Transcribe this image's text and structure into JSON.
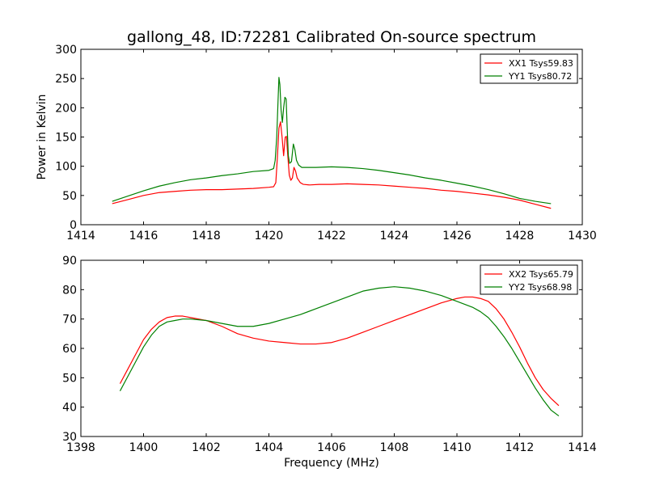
{
  "figure": {
    "title": "gallong_48, ID:72281 Calibrated On-source spectrum",
    "shared_xlabel": "Frequency (MHz)"
  },
  "colors": {
    "red": "#ff0000",
    "green": "#008000",
    "axis": "#000000"
  },
  "chart_data": [
    {
      "type": "line",
      "title": "gallong_48, ID:72281 Calibrated On-source spectrum",
      "xlabel": "",
      "ylabel": "Power in Kelvin",
      "xlim": [
        1414,
        1430
      ],
      "ylim": [
        0,
        300
      ],
      "xticks": [
        1414,
        1416,
        1418,
        1420,
        1422,
        1424,
        1426,
        1428,
        1430
      ],
      "yticks": [
        0,
        50,
        100,
        150,
        200,
        250,
        300
      ],
      "grid": false,
      "legend_position": "top-right",
      "series": [
        {
          "name": "XX1 Tsys59.83",
          "color": "#ff0000",
          "x": [
            1415.0,
            1415.5,
            1416.0,
            1416.5,
            1417.0,
            1417.5,
            1418.0,
            1418.5,
            1419.0,
            1419.5,
            1420.0,
            1420.15,
            1420.22,
            1420.27,
            1420.32,
            1420.37,
            1420.42,
            1420.47,
            1420.52,
            1420.56,
            1420.6,
            1420.65,
            1420.7,
            1420.75,
            1420.8,
            1420.85,
            1420.9,
            1421.0,
            1421.1,
            1421.3,
            1421.6,
            1422.0,
            1422.5,
            1423.0,
            1423.5,
            1424.0,
            1424.5,
            1425.0,
            1425.5,
            1426.0,
            1426.5,
            1427.0,
            1427.5,
            1428.0,
            1428.5,
            1429.0
          ],
          "y": [
            36,
            43,
            50,
            55,
            57,
            59,
            60,
            60,
            61,
            62,
            64,
            65,
            72,
            115,
            165,
            176,
            150,
            118,
            150,
            151,
            120,
            85,
            76,
            80,
            98,
            92,
            80,
            72,
            69,
            68,
            69,
            69,
            70,
            69,
            68,
            66,
            64,
            62,
            59,
            57,
            54,
            51,
            47,
            42,
            35,
            28
          ]
        },
        {
          "name": "YY1 Tsys80.72",
          "color": "#008000",
          "x": [
            1415.0,
            1415.5,
            1416.0,
            1416.5,
            1417.0,
            1417.5,
            1418.0,
            1418.5,
            1419.0,
            1419.5,
            1420.0,
            1420.15,
            1420.2,
            1420.25,
            1420.29,
            1420.32,
            1420.35,
            1420.39,
            1420.43,
            1420.47,
            1420.51,
            1420.55,
            1420.58,
            1420.62,
            1420.66,
            1420.72,
            1420.78,
            1420.83,
            1420.88,
            1420.95,
            1421.05,
            1421.2,
            1421.5,
            1422.0,
            1422.5,
            1423.0,
            1423.5,
            1424.0,
            1424.5,
            1425.0,
            1425.5,
            1426.0,
            1426.5,
            1427.0,
            1427.5,
            1428.0,
            1428.5,
            1429.0
          ],
          "y": [
            40,
            49,
            58,
            66,
            72,
            77,
            80,
            84,
            87,
            91,
            93,
            96,
            110,
            150,
            210,
            252,
            240,
            195,
            175,
            200,
            218,
            215,
            170,
            118,
            105,
            108,
            138,
            128,
            110,
            102,
            98,
            98,
            98,
            99,
            98,
            96,
            93,
            89,
            85,
            80,
            76,
            71,
            66,
            60,
            53,
            45,
            40,
            36
          ]
        }
      ]
    },
    {
      "type": "line",
      "title": "",
      "xlabel": "Frequency (MHz)",
      "ylabel": "",
      "xlim": [
        1398,
        1414
      ],
      "ylim": [
        30,
        90
      ],
      "xticks": [
        1398,
        1400,
        1402,
        1404,
        1406,
        1408,
        1410,
        1412,
        1414
      ],
      "yticks": [
        30,
        40,
        50,
        60,
        70,
        80,
        90
      ],
      "grid": false,
      "legend_position": "top-right",
      "series": [
        {
          "name": "XX2 Tsys65.79",
          "color": "#ff0000",
          "x": [
            1399.25,
            1399.5,
            1399.75,
            1400.0,
            1400.25,
            1400.5,
            1400.75,
            1401.0,
            1401.25,
            1401.5,
            1402.0,
            1402.5,
            1403.0,
            1403.5,
            1404.0,
            1404.5,
            1405.0,
            1405.5,
            1406.0,
            1406.5,
            1407.0,
            1407.5,
            1408.0,
            1408.5,
            1409.0,
            1409.5,
            1410.0,
            1410.25,
            1410.5,
            1410.75,
            1411.0,
            1411.25,
            1411.5,
            1411.75,
            1412.0,
            1412.25,
            1412.5,
            1412.75,
            1413.0,
            1413.25
          ],
          "y": [
            48,
            53,
            58,
            63,
            66.5,
            69,
            70.5,
            71,
            71,
            70.5,
            69.5,
            67.5,
            65,
            63.5,
            62.5,
            62,
            61.5,
            61.5,
            62,
            63.5,
            65.5,
            67.5,
            69.5,
            71.5,
            73.5,
            75.5,
            77,
            77.5,
            77.5,
            77,
            76,
            73.5,
            70,
            65.5,
            60.5,
            55,
            50,
            46,
            43,
            40.5
          ]
        },
        {
          "name": "YY2 Tsys68.98",
          "color": "#008000",
          "x": [
            1399.25,
            1399.5,
            1399.75,
            1400.0,
            1400.25,
            1400.5,
            1400.75,
            1401.0,
            1401.25,
            1401.5,
            1402.0,
            1402.5,
            1403.0,
            1403.5,
            1404.0,
            1404.5,
            1405.0,
            1405.5,
            1406.0,
            1406.5,
            1407.0,
            1407.5,
            1408.0,
            1408.5,
            1409.0,
            1409.5,
            1410.0,
            1410.5,
            1410.75,
            1411.0,
            1411.25,
            1411.5,
            1411.75,
            1412.0,
            1412.25,
            1412.5,
            1412.75,
            1413.0,
            1413.25
          ],
          "y": [
            45.5,
            50.5,
            55.5,
            60.5,
            64.5,
            67.5,
            69,
            69.5,
            70,
            70,
            69.5,
            68.5,
            67.5,
            67.5,
            68.5,
            70,
            71.5,
            73.5,
            75.5,
            77.5,
            79.5,
            80.5,
            81,
            80.5,
            79.5,
            78,
            76,
            74,
            72.5,
            70.5,
            67.5,
            64,
            60,
            55.5,
            51,
            46.5,
            42.5,
            39,
            37
          ]
        }
      ]
    }
  ]
}
